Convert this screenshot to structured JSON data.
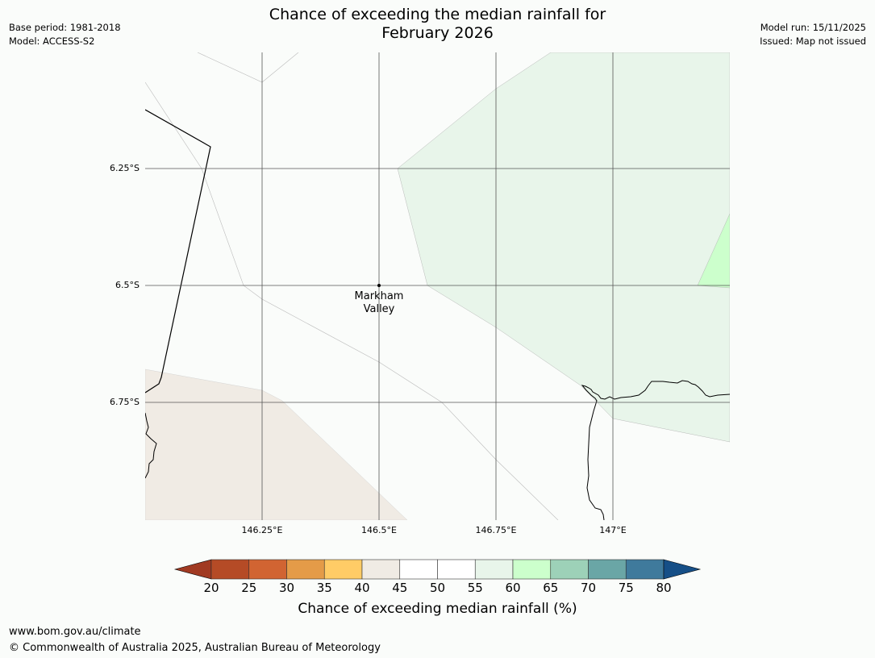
{
  "header": {
    "title_line1": "Chance of exceeding the median rainfall for",
    "title_line2": "February 2026",
    "base_period": "Base period: 1981-2018",
    "model": "Model: ACCESS-S2",
    "model_run": "Model run: 15/11/2025",
    "issued": "Issued: Map not issued"
  },
  "map": {
    "lat_labels": [
      "6.25°S",
      "6.5°S",
      "6.75°S"
    ],
    "lon_labels": [
      "146.25°E",
      "146.5°E",
      "146.75°E",
      "147°E"
    ],
    "place_name": "Markham Valley",
    "place_line1": "Markham",
    "place_line2": "Valley",
    "colors": {
      "ocean": "#fafcfa",
      "band_35_40_tan": "#f0ebe4",
      "band_55_60_lightgreen": "#e8f5ea",
      "band_60_65_green": "#ccffcc",
      "grid": "#555555",
      "coast": "#000000"
    }
  },
  "colorbar": {
    "title": "Chance of exceeding median rainfall (%)",
    "tick_labels": [
      "20",
      "25",
      "30",
      "35",
      "40",
      "45",
      "50",
      "55",
      "60",
      "65",
      "70",
      "75",
      "80"
    ],
    "under_color": "#a13a22",
    "over_color": "#164f87",
    "colors": [
      "#b54b26",
      "#d16432",
      "#e49b48",
      "#ffcc66",
      "#f0ebe4",
      "#ffffff",
      "#ffffff",
      "#e8f5ea",
      "#ccffcc",
      "#9dd1b8",
      "#6aa6a6",
      "#3f7a9c"
    ]
  },
  "footer": {
    "url": "www.bom.gov.au/climate",
    "copyright": "© Commonwealth of Australia 2025, Australian Bureau of Meteorology"
  }
}
